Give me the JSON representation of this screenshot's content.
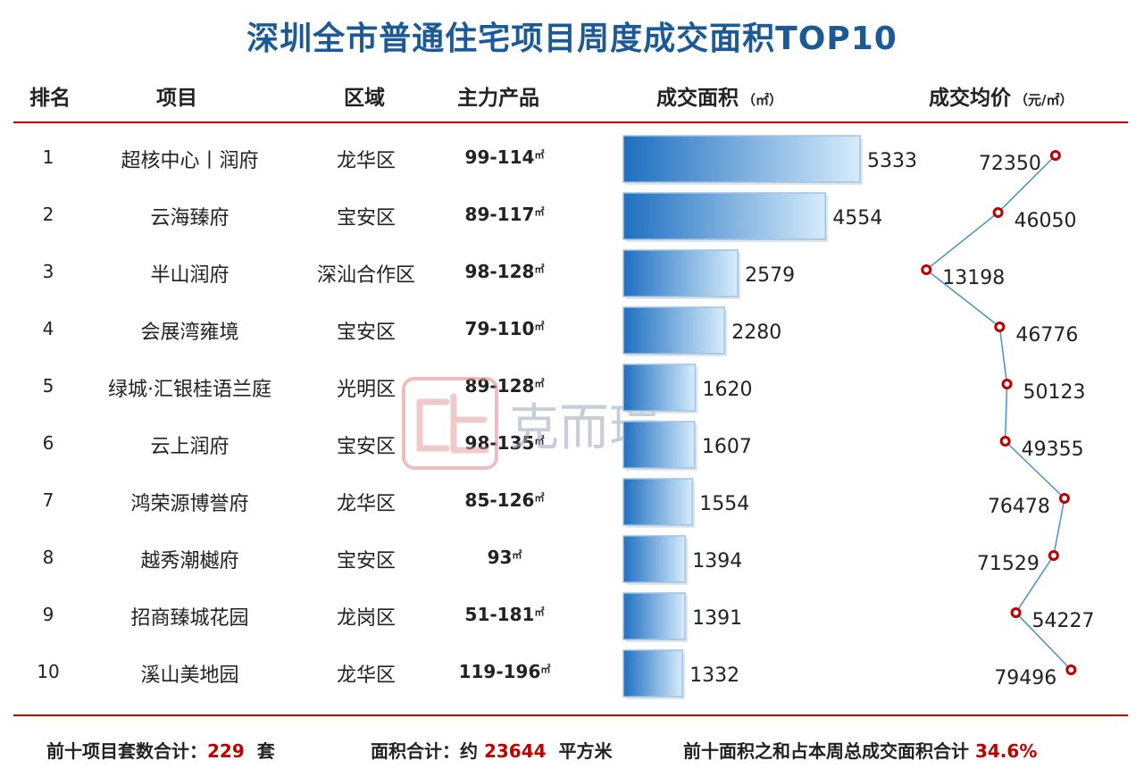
{
  "title": "深圳全市普通住宅项目周度成交面积TOP10",
  "headers": {
    "rank": "排名",
    "project": "项目",
    "district": "区域",
    "product": "主力产品",
    "area": "成交面积",
    "area_unit": "（㎡）",
    "price": "成交均价",
    "price_unit": "（元/㎡）"
  },
  "unit_suffix": "㎡",
  "rows": [
    {
      "rank": "1",
      "project": "超核中心丨润府",
      "district": "龙华区",
      "product": "99-114",
      "area": 5333,
      "price": 72350
    },
    {
      "rank": "2",
      "project": "云海臻府",
      "district": "宝安区",
      "product": "89-117",
      "area": 4554,
      "price": 46050
    },
    {
      "rank": "3",
      "project": "半山润府",
      "district": "深汕合作区",
      "product": "98-128",
      "area": 2579,
      "price": 13198
    },
    {
      "rank": "4",
      "project": "会展湾雍境",
      "district": "宝安区",
      "product": "79-110",
      "area": 2280,
      "price": 46776
    },
    {
      "rank": "5",
      "project": "绿城·汇银桂语兰庭",
      "district": "光明区",
      "product": "89-128",
      "area": 1620,
      "price": 50123
    },
    {
      "rank": "6",
      "project": "云上润府",
      "district": "宝安区",
      "product": "98-135",
      "area": 1607,
      "price": 49355
    },
    {
      "rank": "7",
      "project": "鸿荣源博誉府",
      "district": "龙华区",
      "product": "85-126",
      "area": 1554,
      "price": 76478
    },
    {
      "rank": "8",
      "project": "越秀潮樾府",
      "district": "宝安区",
      "product": "93",
      "area": 1394,
      "price": 71529
    },
    {
      "rank": "9",
      "project": "招商臻城花园",
      "district": "龙岗区",
      "product": "51-181",
      "area": 1391,
      "price": 54227
    },
    {
      "rank": "10",
      "project": "溪山美地园",
      "district": "龙华区",
      "product": "119-196",
      "area": 1332,
      "price": 79496
    }
  ],
  "footer": {
    "sets_label": "前十项目套数合计：",
    "sets_value": "229",
    "sets_unit": "套",
    "area_label": "面积合计：约",
    "area_value": "23644",
    "area_unit": "平方米",
    "share_label": "前十面积之和占本周总成交面积合计",
    "share_value": "34.6%"
  },
  "watermark": {
    "text": "克而瑞"
  },
  "colors": {
    "title": "#1c5a97",
    "rule": "#c00000",
    "bar_dark": "#1f6fc0",
    "bar_light": "#d6ecfb",
    "line": "#4a8fd1",
    "marker": "#c00000",
    "highlight": "#c00000"
  },
  "chart_data": [
    {
      "type": "bar",
      "orientation": "horizontal",
      "title": "成交面积（㎡）",
      "categories": [
        "超核中心丨润府",
        "云海臻府",
        "半山润府",
        "会展湾雍境",
        "绿城·汇银桂语兰庭",
        "云上润府",
        "鸿荣源博誉府",
        "越秀潮樾府",
        "招商臻城花园",
        "溪山美地园"
      ],
      "values": [
        5333,
        4554,
        2579,
        2280,
        1620,
        1607,
        1554,
        1394,
        1391,
        1332
      ],
      "xlim": [
        0,
        6000
      ],
      "grid": false
    },
    {
      "type": "line",
      "orientation": "vertical",
      "title": "成交均价（元/㎡）",
      "categories": [
        "超核中心丨润府",
        "云海臻府",
        "半山润府",
        "会展湾雍境",
        "绿城·汇银桂语兰庭",
        "云上润府",
        "鸿荣源博誉府",
        "越秀潮樾府",
        "招商臻城花园",
        "溪山美地园"
      ],
      "values": [
        72350,
        46050,
        13198,
        46776,
        50123,
        49355,
        76478,
        71529,
        54227,
        79496
      ],
      "grid": false
    }
  ]
}
